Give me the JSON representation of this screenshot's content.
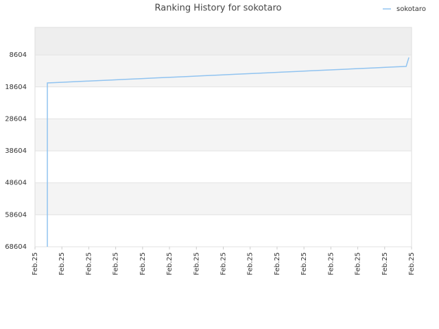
{
  "chart_data": {
    "type": "line",
    "title": "Ranking History for sokotaro",
    "series": [
      {
        "name": "sokotaro",
        "color": "#90c3f0",
        "x": [
          0.46,
          0.46,
          1.04,
          1.62,
          2.2,
          2.78,
          3.36,
          3.94,
          4.52,
          5.1,
          5.68,
          6.26,
          6.84,
          7.42,
          8.0,
          8.58,
          9.16,
          9.74,
          10.32,
          10.9,
          11.48,
          12.06,
          12.64,
          13.22,
          13.8,
          13.9
        ],
        "values": [
          68604,
          17370,
          17145,
          16920,
          16695,
          16470,
          16245,
          16020,
          15795,
          15570,
          15345,
          15120,
          14895,
          14670,
          14445,
          14220,
          13995,
          13770,
          13545,
          13320,
          13095,
          12870,
          12645,
          12420,
          12195,
          9400
        ]
      }
    ],
    "xlim": [
      0,
      14
    ],
    "xticks": [
      {
        "value": 0,
        "label": "Feb.25"
      },
      {
        "value": 1,
        "label": "Feb.25"
      },
      {
        "value": 2,
        "label": "Feb.25"
      },
      {
        "value": 3,
        "label": "Feb.25"
      },
      {
        "value": 4,
        "label": "Feb.25"
      },
      {
        "value": 5,
        "label": "Feb.25"
      },
      {
        "value": 6,
        "label": "Feb.25"
      },
      {
        "value": 7,
        "label": "Feb.25"
      },
      {
        "value": 8,
        "label": "Feb.25"
      },
      {
        "value": 9,
        "label": "Feb.25"
      },
      {
        "value": 10,
        "label": "Feb.25"
      },
      {
        "value": 11,
        "label": "Feb.25"
      },
      {
        "value": 12,
        "label": "Feb.25"
      },
      {
        "value": 13,
        "label": "Feb.25"
      },
      {
        "value": 14,
        "label": "Feb.25"
      }
    ],
    "ylim": [
      68604,
      0
    ],
    "yticks": [
      8604,
      18604,
      28604,
      38604,
      48604,
      58604,
      68604
    ],
    "grid": true,
    "legend": "top-right"
  }
}
